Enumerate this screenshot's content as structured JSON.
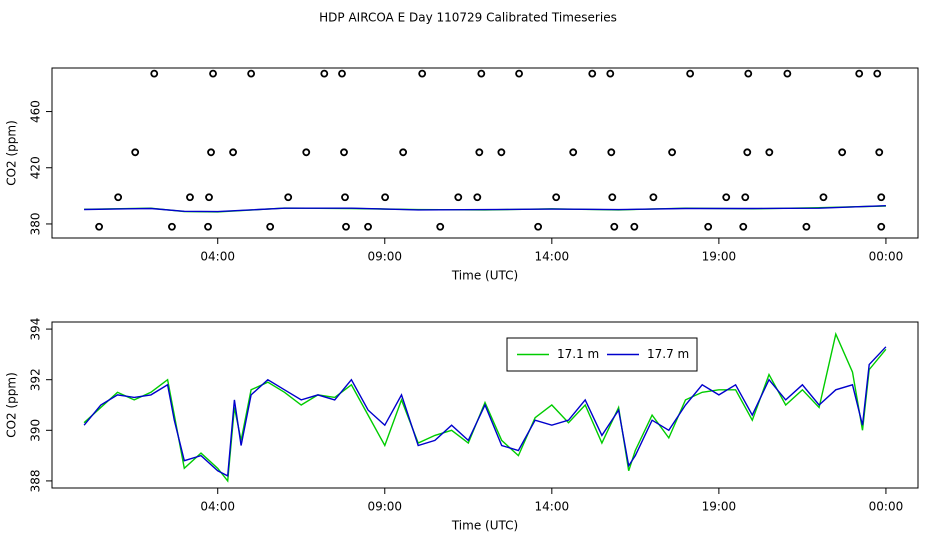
{
  "chart_data": [
    {
      "type": "line",
      "title": "HDP AIRCOA E  Day 110729  Calibrated Timeseries",
      "xlabel": "Time (UTC)",
      "ylabel": "CO2 (ppm)",
      "xlim": [
        -0.96,
        24.96
      ],
      "ylim": [
        370,
        491
      ],
      "xticks": [
        {
          "value": 4,
          "label": "04:00"
        },
        {
          "value": 9,
          "label": "09:00"
        },
        {
          "value": 14,
          "label": "14:00"
        },
        {
          "value": 19,
          "label": "19:00"
        },
        {
          "value": 24,
          "label": "00:00"
        }
      ],
      "yticks": [
        380,
        420,
        460
      ],
      "series": [
        {
          "style": "points",
          "color": "#000000",
          "x": [
            2.1,
            3.86,
            5.0,
            7.19,
            7.72,
            10.12,
            11.89,
            13.02,
            15.21,
            15.75,
            18.14,
            19.88,
            21.05,
            23.2,
            23.74,
            1.53,
            3.8,
            4.46,
            6.65,
            7.78,
            9.55,
            11.83,
            12.49,
            14.64,
            15.78,
            17.6,
            19.85,
            20.51,
            22.69,
            23.8,
            1.02,
            3.17,
            3.74,
            6.11,
            7.81,
            9.01,
            11.2,
            11.77,
            14.13,
            15.81,
            17.04,
            19.22,
            19.79,
            22.13,
            23.86,
            0.45,
            2.63,
            3.71,
            5.57,
            7.84,
            8.5,
            10.66,
            13.59,
            15.87,
            16.47,
            18.68,
            19.73,
            21.62,
            23.86
          ],
          "values": [
            487,
            487,
            487,
            487,
            487,
            487,
            487,
            487,
            487,
            487,
            487,
            487,
            487,
            487,
            487,
            431,
            431,
            431,
            431,
            431,
            431,
            431,
            431,
            431,
            431,
            431,
            431,
            431,
            431,
            431,
            399,
            399,
            399,
            399,
            399,
            399,
            399,
            399,
            399,
            399,
            399,
            399,
            399,
            399,
            399,
            378,
            378,
            378,
            378,
            378,
            378,
            378,
            378,
            378,
            378,
            378,
            378,
            378,
            378
          ]
        },
        {
          "style": "line",
          "color": "#00cc00",
          "x": [
            0,
            2,
            3,
            4,
            6,
            8,
            10,
            12,
            14,
            16,
            18,
            20,
            22,
            24
          ],
          "values": [
            390.4,
            391.2,
            388.8,
            388.6,
            391.3,
            391.0,
            390.2,
            390.0,
            390.8,
            390.0,
            391.2,
            390.8,
            391.6,
            392.8
          ]
        },
        {
          "style": "line",
          "color": "#0000cc",
          "x": [
            0,
            2,
            3,
            4,
            6,
            8,
            10,
            12,
            14,
            16,
            18,
            20,
            22,
            24
          ],
          "values": [
            390.3,
            391.0,
            389.0,
            388.8,
            391.2,
            391.2,
            390.0,
            390.2,
            390.6,
            390.2,
            391.0,
            391.0,
            391.2,
            393.0
          ]
        }
      ]
    },
    {
      "type": "line",
      "xlabel": "Time (UTC)",
      "ylabel": "CO2 (ppm)",
      "xlim": [
        -0.96,
        24.96
      ],
      "ylim": [
        387.72,
        394.28
      ],
      "xticks": [
        {
          "value": 4,
          "label": "04:00"
        },
        {
          "value": 9,
          "label": "09:00"
        },
        {
          "value": 14,
          "label": "14:00"
        },
        {
          "value": 19,
          "label": "19:00"
        },
        {
          "value": 24,
          "label": "00:00"
        }
      ],
      "yticks": [
        388,
        390,
        392,
        394
      ],
      "legend": "top",
      "series": [
        {
          "name": "17.1 m",
          "style": "line",
          "color": "#00cc00",
          "x": [
            0,
            0.5,
            1,
            1.5,
            2,
            2.5,
            2.7,
            3,
            3.5,
            4,
            4.3,
            4.5,
            4.7,
            5,
            5.5,
            6,
            6.5,
            7,
            7.5,
            8,
            8.5,
            9,
            9.5,
            10,
            10.5,
            11,
            11.5,
            12,
            12.5,
            13,
            13.5,
            14,
            14.5,
            15,
            15.5,
            16,
            16.3,
            16.5,
            17,
            17.5,
            18,
            18.5,
            19,
            19.5,
            20,
            20.5,
            21,
            21.5,
            22,
            22.5,
            23,
            23.3,
            23.5,
            24
          ],
          "values": [
            390.3,
            390.9,
            391.5,
            391.2,
            391.5,
            392.0,
            390.6,
            388.5,
            389.1,
            388.5,
            388.0,
            390.9,
            389.6,
            391.6,
            391.9,
            391.5,
            391.0,
            391.4,
            391.3,
            391.8,
            390.6,
            389.4,
            391.2,
            389.5,
            389.8,
            390.0,
            389.5,
            391.1,
            389.6,
            389.0,
            390.5,
            391.0,
            390.3,
            391.0,
            389.5,
            390.9,
            388.4,
            389.2,
            390.6,
            389.7,
            391.2,
            391.5,
            391.6,
            391.6,
            390.4,
            392.2,
            391.0,
            391.6,
            390.9,
            393.8,
            392.3,
            390.0,
            392.4,
            393.2
          ]
        },
        {
          "name": "17.7 m",
          "style": "line",
          "color": "#0000cc",
          "x": [
            0,
            0.5,
            1,
            1.5,
            2,
            2.5,
            2.7,
            3,
            3.5,
            4,
            4.3,
            4.5,
            4.7,
            5,
            5.5,
            6,
            6.5,
            7,
            7.5,
            8,
            8.5,
            9,
            9.5,
            10,
            10.5,
            11,
            11.5,
            12,
            12.5,
            13,
            13.5,
            14,
            14.5,
            15,
            15.5,
            16,
            16.3,
            16.5,
            17,
            17.5,
            18,
            18.5,
            19,
            19.5,
            20,
            20.5,
            21,
            21.5,
            22,
            22.5,
            23,
            23.3,
            23.5,
            24
          ],
          "values": [
            390.2,
            391.0,
            391.4,
            391.3,
            391.4,
            391.8,
            390.4,
            388.8,
            389.0,
            388.4,
            388.2,
            391.2,
            389.4,
            391.4,
            392.0,
            391.6,
            391.2,
            391.4,
            391.2,
            392.0,
            390.8,
            390.2,
            391.4,
            389.4,
            389.6,
            390.2,
            389.6,
            391.0,
            389.4,
            389.2,
            390.4,
            390.2,
            390.4,
            391.2,
            389.8,
            390.8,
            388.6,
            389.0,
            390.4,
            390.0,
            391.0,
            391.8,
            391.4,
            391.8,
            390.6,
            392.0,
            391.2,
            391.8,
            391.0,
            391.6,
            391.8,
            390.2,
            392.6,
            393.3
          ]
        }
      ]
    }
  ]
}
